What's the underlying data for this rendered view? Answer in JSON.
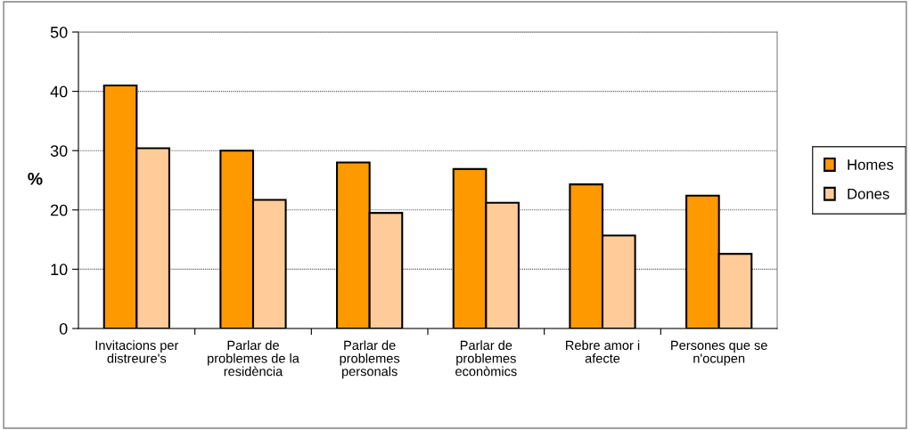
{
  "chart_data": {
    "type": "bar",
    "ylabel": "%",
    "categories": [
      "Invitacions per distreure's",
      "Parlar de problemes de la residència",
      "Parlar de problemes personals",
      "Parlar de problemes econòmics",
      "Rebre amor i afecte",
      "Persones que se n'ocupen"
    ],
    "series": [
      {
        "name": "Homes",
        "color": "#ff9900",
        "values": [
          41.0,
          30.0,
          28.0,
          26.9,
          24.3,
          22.4
        ]
      },
      {
        "name": "Dones",
        "color": "#ffcc99",
        "values": [
          30.4,
          21.7,
          19.5,
          21.2,
          15.7,
          12.6
        ]
      }
    ],
    "ylim": [
      0,
      50
    ],
    "yticks": [
      0,
      10,
      20,
      30,
      40,
      50
    ],
    "grid": "y",
    "legend": "right"
  }
}
